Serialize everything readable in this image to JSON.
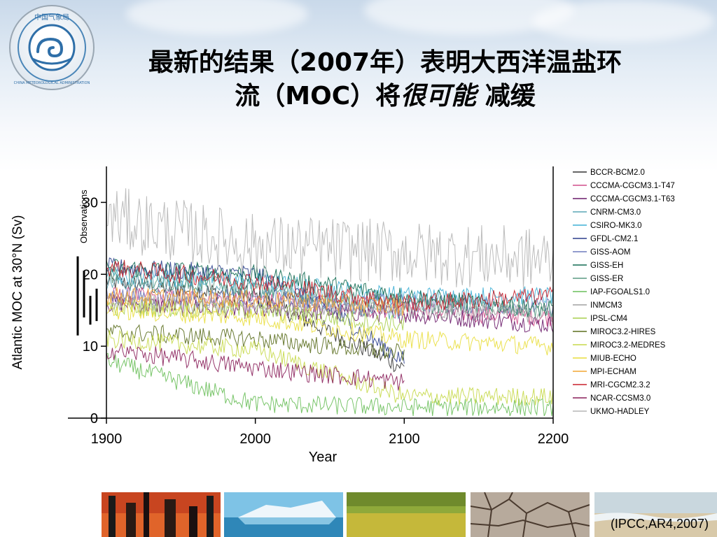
{
  "slide": {
    "title_line1": "最新的结果（2007年）表明大西洋温盐环",
    "title_line2_pre": "流（MOC）将",
    "title_line2_emph": "很可能",
    "title_line2_post": " 减缓",
    "logo_text": "CHINA METEOROLOGICAL ADMINISTRATION",
    "logo_cn": "中国气象局",
    "source": "(IPCC,AR4,2007)",
    "photos": [
      "industry-smokestacks",
      "iceberg-sea",
      "flower-field",
      "cracked-earth",
      "coast-shore"
    ]
  },
  "chart_data": {
    "type": "line",
    "title": "",
    "xlabel": "Year",
    "ylabel": "Atlantic MOC at  30°N (Sv)",
    "xlim": [
      1900,
      2200
    ],
    "ylim": [
      0,
      35
    ],
    "xticks": [
      1900,
      2000,
      2100,
      2200
    ],
    "yticks": [
      0,
      10,
      20,
      30
    ],
    "grid": false,
    "legend_position": "right",
    "observations_label": "Observations",
    "observations": [
      {
        "low": 11.5,
        "high": 22.5
      },
      {
        "low": 14.0,
        "high": 20.5
      },
      {
        "low": 13.0,
        "high": 17.0
      },
      {
        "low": 13.5,
        "high": 18.0
      }
    ],
    "series": [
      {
        "name": "BCCR-BCM2.0",
        "color": "#333333",
        "x": [
          1900,
          2000,
          2050,
          2100
        ],
        "values": [
          19,
          17,
          12,
          7
        ]
      },
      {
        "name": "CCCMA-CGCM3.1-T47",
        "color": "#d04f8a",
        "x": [
          1900,
          2000,
          2100,
          2200
        ],
        "values": [
          17,
          16.5,
          15,
          14
        ]
      },
      {
        "name": "CCCMA-CGCM3.1-T63",
        "color": "#6a1b6a",
        "x": [
          1900,
          2000,
          2100,
          2200
        ],
        "values": [
          16,
          15,
          14.5,
          13
        ]
      },
      {
        "name": "CNRM-CM3.0",
        "color": "#5aa6b5",
        "x": [
          1900,
          2000,
          2100
        ],
        "values": [
          19,
          18,
          14.5
        ]
      },
      {
        "name": "CSIRO-MK3.0",
        "color": "#3fb0d6",
        "x": [
          1900,
          2000,
          2100,
          2200
        ],
        "values": [
          20,
          19,
          17,
          17
        ]
      },
      {
        "name": "GFDL-CM2.1",
        "color": "#2b3f8c",
        "x": [
          1900,
          2000,
          2050,
          2100
        ],
        "values": [
          21,
          20,
          15,
          8
        ]
      },
      {
        "name": "GISS-AOM",
        "color": "#6f7bbd",
        "x": [
          1900,
          2000,
          2100,
          2200
        ],
        "values": [
          17,
          16.5,
          16,
          15.5
        ]
      },
      {
        "name": "GISS-EH",
        "color": "#126b52",
        "x": [
          1900,
          2000,
          2100,
          2200
        ],
        "values": [
          21,
          20,
          17,
          15
        ]
      },
      {
        "name": "GISS-ER",
        "color": "#5a9a82",
        "x": [
          1900,
          2000,
          2100,
          2200
        ],
        "values": [
          20,
          18,
          16,
          15
        ]
      },
      {
        "name": "IAP-FGOALS1.0",
        "color": "#6abf5a",
        "x": [
          1900,
          2000,
          2100,
          2200
        ],
        "values": [
          8,
          2,
          1.5,
          1.5
        ]
      },
      {
        "name": "INMCM3",
        "color": "#a0a0a0",
        "x": [
          1900,
          2000,
          2100,
          2200
        ],
        "values": [
          16,
          15.5,
          15,
          14.5
        ]
      },
      {
        "name": "IPSL-CM4",
        "color": "#a9cf4f",
        "x": [
          1900,
          2000,
          2100
        ],
        "values": [
          15.5,
          15,
          13
        ]
      },
      {
        "name": "MIROC3.2-HIRES",
        "color": "#5b6e1e",
        "x": [
          1900,
          2000,
          2100
        ],
        "values": [
          12,
          11,
          9
        ]
      },
      {
        "name": "MIROC3.2-MEDRES",
        "color": "#c7d94a",
        "x": [
          1900,
          2000,
          2100,
          2200
        ],
        "values": [
          11,
          9.5,
          3,
          3
        ]
      },
      {
        "name": "MIUB-ECHO",
        "color": "#e9de3c",
        "x": [
          1900,
          2000,
          2100,
          2200
        ],
        "values": [
          15,
          14,
          11,
          10
        ]
      },
      {
        "name": "MPI-ECHAM",
        "color": "#f2a632",
        "x": [
          1900,
          2000,
          2100
        ],
        "values": [
          17,
          16.5,
          15.5
        ]
      },
      {
        "name": "MRI-CGCM2.3.2",
        "color": "#c8202c",
        "x": [
          1900,
          2000,
          2100,
          2200
        ],
        "values": [
          21,
          19,
          16,
          17
        ]
      },
      {
        "name": "NCAR-CCSM3.0",
        "color": "#8a1f5a",
        "x": [
          1900,
          2000,
          2100
        ],
        "values": [
          9.5,
          7,
          5
        ]
      },
      {
        "name": "UKMO-HADLEY",
        "color": "#b5b5b5",
        "x": [
          1900,
          2000,
          2100,
          2200
        ],
        "values": [
          28,
          24,
          23,
          22
        ]
      }
    ]
  }
}
